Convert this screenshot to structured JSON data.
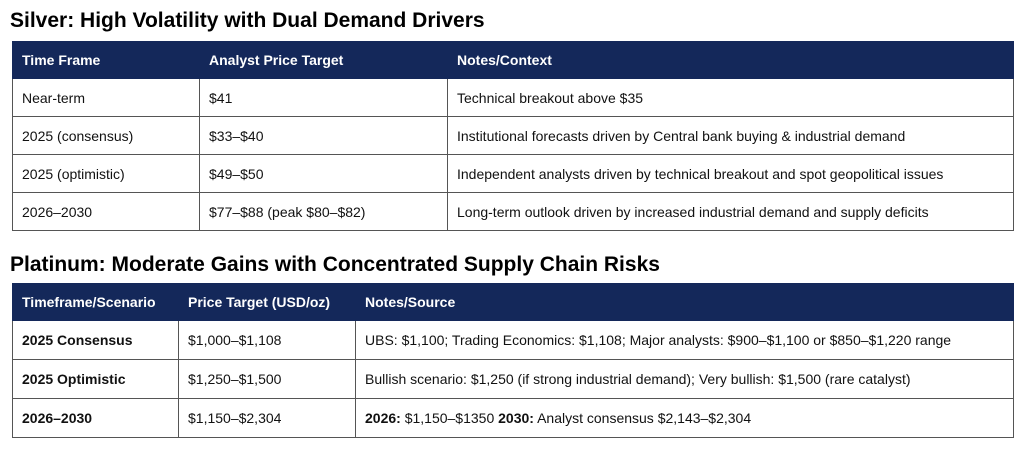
{
  "silver": {
    "title": "Silver: High Volatility with Dual Demand Drivers",
    "headers": [
      "Time Frame",
      "Analyst Price Target",
      "Notes/Context"
    ],
    "rows": [
      [
        "Near-term",
        "$41",
        "Technical breakout above $35"
      ],
      [
        "2025 (consensus)",
        "$33–$40",
        "Institutional forecasts driven by Central bank buying & industrial demand"
      ],
      [
        "2025 (optimistic)",
        "$49–$50",
        "Independent analysts driven by technical breakout and spot geopolitical issues"
      ],
      [
        "2026–2030",
        "$77–$88 (peak $80–$82)",
        "Long-term outlook driven by increased industrial demand and supply deficits"
      ]
    ]
  },
  "platinum": {
    "title": "Platinum: Moderate Gains with Concentrated Supply Chain Risks",
    "headers": [
      "Timeframe/Scenario",
      "Price Target (USD/oz)",
      "Notes/Source"
    ],
    "rows": [
      {
        "scenario": "2025 Consensus",
        "target": "$1,000–$1,108",
        "notes": "UBS: $1,100; Trading Economics: $1,108; Major analysts: $900–$1,100 or $850–$1,220 range"
      },
      {
        "scenario": "2025 Optimistic",
        "target": "$1,250–$1,500",
        "notes": "Bullish scenario: $1,250 (if strong industrial demand); Very bullish: $1,500 (rare catalyst)"
      },
      {
        "scenario": "2026–2030",
        "target": "$1,150–$2,304",
        "notes_label_1": "2026:",
        "notes_text_1": " $1,150–$1350 ",
        "notes_label_2": "2030:",
        "notes_text_2": " Analyst consensus $2,143–$2,304"
      }
    ]
  }
}
